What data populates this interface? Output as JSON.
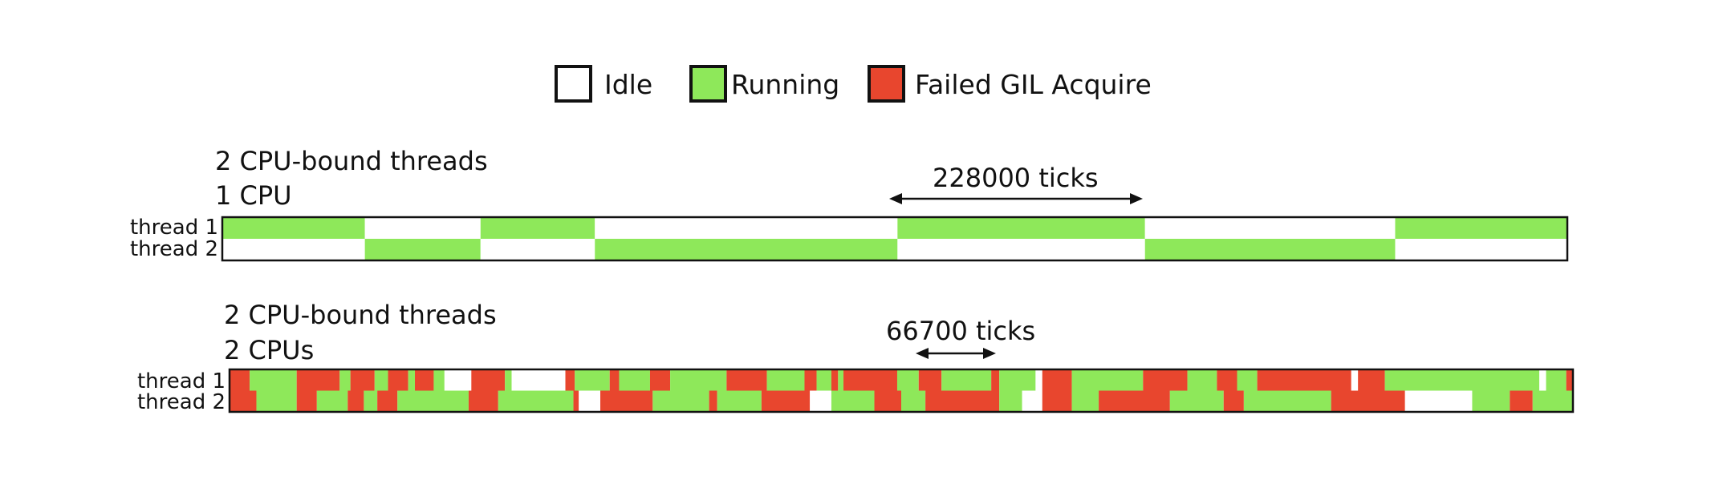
{
  "colors": {
    "idle": "#ffffff",
    "running": "#8ee85a",
    "failed": "#e8462e",
    "border": "#111111"
  },
  "legend": [
    {
      "key": "idle",
      "label": "Idle"
    },
    {
      "key": "running",
      "label": "Running"
    },
    {
      "key": "failed",
      "label": "Failed GIL Acquire"
    }
  ],
  "panels": [
    {
      "title_line1": "2 CPU-bound threads",
      "title_line2": "1 CPU",
      "annotation": "228000 ticks",
      "thread_labels": [
        "thread 1",
        "thread 2"
      ],
      "threads": [
        [
          [
            "R",
            0,
            0.106
          ],
          [
            "I",
            0.106,
            0.192
          ],
          [
            "R",
            0.192,
            0.277
          ],
          [
            "I",
            0.277,
            0.502
          ],
          [
            "R",
            0.502,
            0.686
          ],
          [
            "I",
            0.686,
            0.872
          ],
          [
            "R",
            0.872,
            1.0
          ]
        ],
        [
          [
            "I",
            0,
            0.106
          ],
          [
            "R",
            0.106,
            0.192
          ],
          [
            "I",
            0.192,
            0.277
          ],
          [
            "R",
            0.277,
            0.502
          ],
          [
            "I",
            0.502,
            0.686
          ],
          [
            "R",
            0.686,
            0.872
          ],
          [
            "I",
            0.872,
            1.0
          ]
        ]
      ]
    },
    {
      "title_line1": "2 CPU-bound threads",
      "title_line2": "2 CPUs",
      "annotation": "66700 ticks",
      "thread_labels": [
        "thread 1",
        "thread 2"
      ],
      "threads": [
        [
          [
            "F",
            0,
            0.015
          ],
          [
            "R",
            0.015,
            0.05
          ],
          [
            "F",
            0.05,
            0.082
          ],
          [
            "R",
            0.082,
            0.09
          ],
          [
            "F",
            0.09,
            0.108
          ],
          [
            "R",
            0.108,
            0.118
          ],
          [
            "F",
            0.118,
            0.133
          ],
          [
            "R",
            0.133,
            0.138
          ],
          [
            "F",
            0.138,
            0.152
          ],
          [
            "R",
            0.152,
            0.16
          ],
          [
            "I",
            0.16,
            0.18
          ],
          [
            "F",
            0.18,
            0.205
          ],
          [
            "R",
            0.205,
            0.21
          ],
          [
            "I",
            0.21,
            0.25
          ],
          [
            "F",
            0.25,
            0.257
          ],
          [
            "R",
            0.257,
            0.283
          ],
          [
            "F",
            0.283,
            0.29
          ],
          [
            "R",
            0.29,
            0.313
          ],
          [
            "F",
            0.313,
            0.328
          ],
          [
            "R",
            0.328,
            0.37
          ],
          [
            "F",
            0.37,
            0.4
          ],
          [
            "R",
            0.4,
            0.428
          ],
          [
            "F",
            0.428,
            0.437
          ],
          [
            "R",
            0.437,
            0.448
          ],
          [
            "F",
            0.448,
            0.453
          ],
          [
            "R",
            0.453,
            0.457
          ],
          [
            "F",
            0.457,
            0.497
          ],
          [
            "R",
            0.497,
            0.513
          ],
          [
            "F",
            0.513,
            0.53
          ],
          [
            "R",
            0.53,
            0.567
          ],
          [
            "F",
            0.567,
            0.573
          ],
          [
            "R",
            0.573,
            0.6
          ],
          [
            "I",
            0.6,
            0.605
          ],
          [
            "F",
            0.605,
            0.627
          ],
          [
            "R",
            0.627,
            0.68
          ],
          [
            "F",
            0.68,
            0.713
          ],
          [
            "R",
            0.713,
            0.735
          ],
          [
            "F",
            0.735,
            0.75
          ],
          [
            "R",
            0.75,
            0.765
          ],
          [
            "F",
            0.765,
            0.835
          ],
          [
            "I",
            0.835,
            0.84
          ],
          [
            "F",
            0.84,
            0.86
          ],
          [
            "R",
            0.86,
            0.975
          ],
          [
            "I",
            0.975,
            0.98
          ],
          [
            "R",
            0.98,
            0.995
          ],
          [
            "F",
            0.995,
            1.0
          ]
        ],
        [
          [
            "F",
            0,
            0.02
          ],
          [
            "R",
            0.02,
            0.05
          ],
          [
            "F",
            0.05,
            0.065
          ],
          [
            "R",
            0.065,
            0.088
          ],
          [
            "F",
            0.088,
            0.1
          ],
          [
            "R",
            0.1,
            0.11
          ],
          [
            "F",
            0.11,
            0.125
          ],
          [
            "R",
            0.125,
            0.178
          ],
          [
            "F",
            0.178,
            0.2
          ],
          [
            "R",
            0.2,
            0.256
          ],
          [
            "F",
            0.256,
            0.26
          ],
          [
            "I",
            0.26,
            0.276
          ],
          [
            "F",
            0.276,
            0.315
          ],
          [
            "R",
            0.315,
            0.357
          ],
          [
            "F",
            0.357,
            0.363
          ],
          [
            "R",
            0.363,
            0.396
          ],
          [
            "F",
            0.396,
            0.432
          ],
          [
            "I",
            0.432,
            0.448
          ],
          [
            "R",
            0.448,
            0.48
          ],
          [
            "F",
            0.48,
            0.5
          ],
          [
            "R",
            0.5,
            0.518
          ],
          [
            "F",
            0.518,
            0.573
          ],
          [
            "R",
            0.573,
            0.59
          ],
          [
            "I",
            0.59,
            0.605
          ],
          [
            "F",
            0.605,
            0.627
          ],
          [
            "R",
            0.627,
            0.647
          ],
          [
            "F",
            0.647,
            0.7
          ],
          [
            "R",
            0.7,
            0.74
          ],
          [
            "F",
            0.74,
            0.755
          ],
          [
            "R",
            0.755,
            0.82
          ],
          [
            "F",
            0.82,
            0.875
          ],
          [
            "I",
            0.875,
            0.925
          ],
          [
            "R",
            0.925,
            0.953
          ],
          [
            "F",
            0.953,
            0.97
          ],
          [
            "R",
            0.97,
            1.0
          ]
        ]
      ]
    }
  ]
}
